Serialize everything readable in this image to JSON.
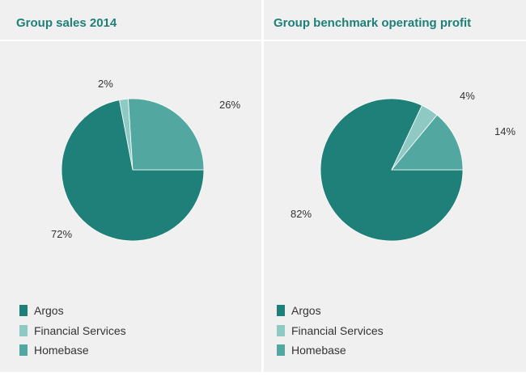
{
  "colors": {
    "argos": "#1e8079",
    "financial": "#8ecac3",
    "homebase": "#52a8a0"
  },
  "chart_data": [
    {
      "type": "pie",
      "title": "Group sales 2014",
      "categories": [
        "Argos",
        "Financial Services",
        "Homebase"
      ],
      "values": [
        72,
        2,
        26
      ],
      "labels": [
        "72%",
        "2%",
        "26%"
      ],
      "legend": "bottom"
    },
    {
      "type": "pie",
      "title": "Group benchmark operating profit",
      "categories": [
        "Argos",
        "Financial Services",
        "Homebase"
      ],
      "values": [
        82,
        4,
        14
      ],
      "labels": [
        "82%",
        "4%",
        "14%"
      ],
      "legend": "bottom"
    }
  ]
}
